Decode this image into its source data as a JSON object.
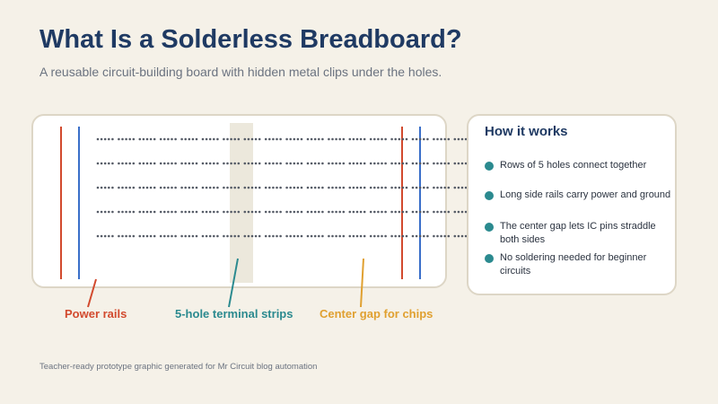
{
  "title": "What Is a Solderless Breadboard?",
  "subtitle": "A reusable circuit-building board with hidden metal clips under the holes.",
  "colors": {
    "background": "#f5f1e8",
    "title": "#1f3a63",
    "power_red": "#d24a2e",
    "power_blue": "#3a6fc9",
    "teal": "#2b8a8f",
    "orange": "#e0a030",
    "holes": "#555b66",
    "center_gap": "#ece8dc"
  },
  "breadboard": {
    "terminal_rows": 5,
    "holes_per_strip": 5
  },
  "info_panel": {
    "title": "How it works",
    "bullets": [
      "Rows of 5 holes connect together",
      "Long side rails carry power and ground",
      "The center gap lets IC pins straddle both sides",
      "No soldering needed for beginner circuits"
    ]
  },
  "callouts": {
    "power_rails": "Power rails",
    "terminal_strips": "5-hole terminal strips",
    "center_gap": "Center gap for chips"
  },
  "footer": "Teacher-ready prototype graphic generated for Mr Circuit blog automation"
}
